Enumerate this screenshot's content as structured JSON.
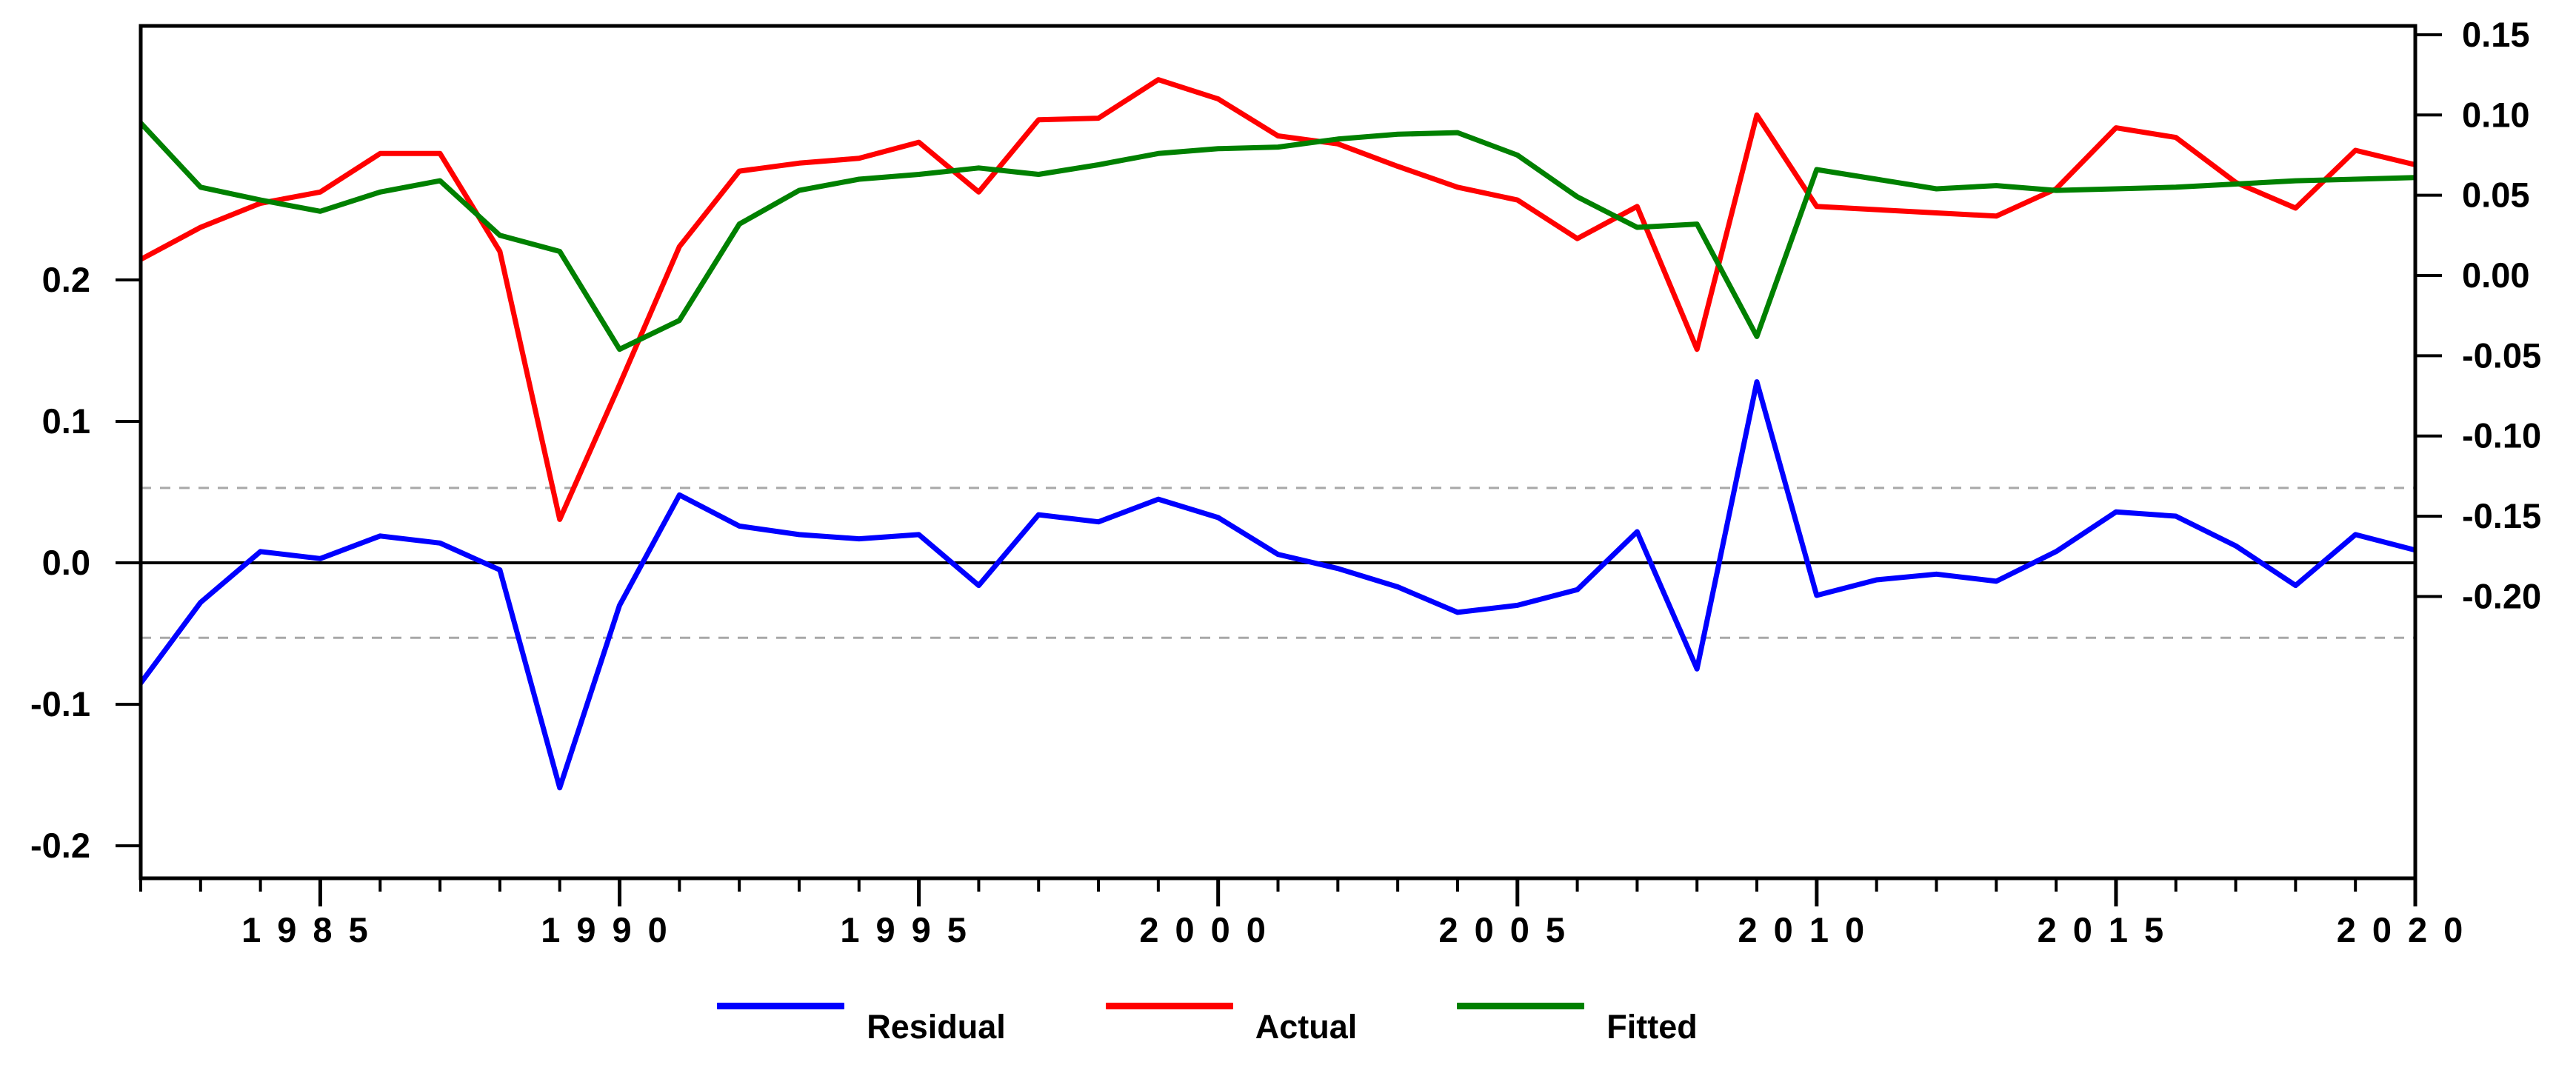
{
  "chart_data": {
    "type": "line",
    "title": "",
    "xlabel": "",
    "ylabel_left": "",
    "ylabel_right": "",
    "grid": "off",
    "legend_position": "bottom-center",
    "x": [
      1982,
      1983,
      1984,
      1985,
      1986,
      1987,
      1988,
      1989,
      1990,
      1991,
      1992,
      1993,
      1994,
      1995,
      1996,
      1997,
      1998,
      1999,
      2000,
      2001,
      2002,
      2003,
      2004,
      2005,
      2006,
      2007,
      2008,
      2009,
      2010,
      2011,
      2012,
      2013,
      2014,
      2015,
      2016,
      2017,
      2018,
      2019,
      2020
    ],
    "series": [
      {
        "name": "Residual",
        "color": "#0000ff",
        "axis": "left",
        "values": [
          -0.085,
          -0.028,
          0.008,
          0.003,
          0.019,
          0.014,
          -0.005,
          -0.159,
          -0.03,
          0.048,
          0.026,
          0.02,
          0.017,
          0.02,
          -0.016,
          0.034,
          0.029,
          0.045,
          0.032,
          0.006,
          -0.004,
          -0.017,
          -0.035,
          -0.03,
          -0.019,
          0.022,
          -0.075,
          0.128,
          -0.023,
          -0.012,
          -0.008,
          -0.013,
          0.008,
          0.036,
          0.033,
          0.012,
          -0.016,
          0.02,
          0.009
        ]
      },
      {
        "name": "Actual",
        "color": "#ff0000",
        "axis": "right",
        "values": [
          0.01,
          0.03,
          0.045,
          0.052,
          0.076,
          0.076,
          0.015,
          -0.152,
          -0.068,
          0.018,
          0.065,
          0.07,
          0.073,
          0.083,
          0.052,
          0.097,
          0.098,
          0.122,
          0.11,
          0.087,
          0.082,
          0.068,
          0.055,
          0.047,
          0.023,
          0.043,
          -0.046,
          0.1,
          0.043,
          0.041,
          0.039,
          0.037,
          0.054,
          0.092,
          0.086,
          0.058,
          0.042,
          0.078,
          0.069
        ]
      },
      {
        "name": "Fitted",
        "color": "#008000",
        "axis": "right",
        "values": [
          0.095,
          0.055,
          0.047,
          0.04,
          0.052,
          0.059,
          0.025,
          0.015,
          -0.046,
          -0.028,
          0.032,
          0.053,
          0.06,
          0.063,
          0.067,
          0.063,
          0.069,
          0.076,
          0.079,
          0.08,
          0.085,
          0.088,
          0.089,
          0.075,
          0.049,
          0.03,
          0.032,
          -0.038,
          0.066,
          0.06,
          0.054,
          0.056,
          0.053,
          0.054,
          0.055,
          0.057,
          0.059,
          0.06,
          0.061
        ]
      }
    ],
    "left_axis": {
      "range": [
        -0.223,
        0.3796
      ],
      "ticks": [
        0.2,
        0.1,
        0.0,
        -0.1,
        -0.2
      ],
      "labels": [
        "0.2",
        "0.1",
        "0.0",
        "-0.1",
        "-0.2"
      ],
      "zero_line_value": 0.0,
      "se_band_values": [
        0.053,
        -0.053
      ]
    },
    "right_axis": {
      "range": [
        -0.3756,
        0.1555
      ],
      "ticks": [
        0.15,
        0.1,
        0.05,
        0.0,
        -0.05,
        -0.1,
        -0.15,
        -0.2
      ],
      "labels": [
        "0.15",
        "0.10",
        "0.05",
        "0.00",
        "-0.05",
        "-0.10",
        "-0.15",
        "-0.20"
      ]
    },
    "x_axis": {
      "range": [
        1982,
        2020
      ],
      "minor_tick_step": 1,
      "major_tick_years": [
        1985,
        1990,
        1995,
        2000,
        2005,
        2010,
        2015,
        2020
      ],
      "major_labels": [
        "1985",
        "1990",
        "1995",
        "2000",
        "2005",
        "2010",
        "2015",
        "2020"
      ]
    },
    "colors": {
      "zero_line": "#000000",
      "se_band": "#a8a8a8",
      "frame": "#000000",
      "background": "#ffffff"
    }
  },
  "legend": {
    "items": [
      {
        "label": "Residual",
        "color": "#0000ff"
      },
      {
        "label": "Actual",
        "color": "#ff0000"
      },
      {
        "label": "Fitted",
        "color": "#008000"
      }
    ]
  }
}
